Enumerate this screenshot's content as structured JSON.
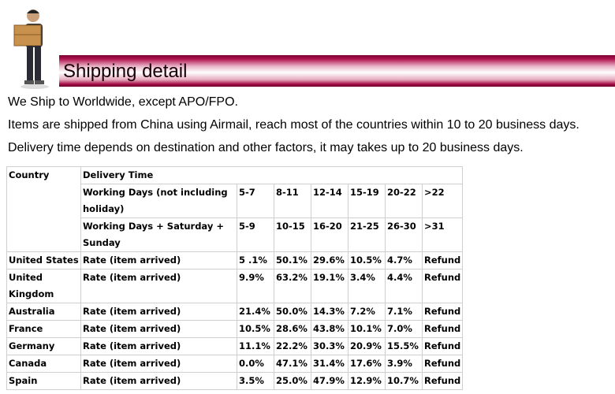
{
  "header": {
    "title": "Shipping detail"
  },
  "paragraphs": [
    "We Ship to Worldwide, except APO/FPO.",
    "Items are shipped from China using Airmail, reach most of the countries within 10 to 20 business days.",
    "Delivery time depends on destination and other factors, it may takes up to 20 business days."
  ],
  "table": {
    "country_header": "Country",
    "delivery_header": "Delivery Time",
    "day_rows": [
      {
        "label": "Working Days (not including holiday)",
        "values": [
          "5-7",
          "8-11",
          "12-14",
          "15-19",
          "20-22",
          ">22"
        ]
      },
      {
        "label": "Working Days + Saturday + Sunday",
        "values": [
          "5-9",
          "10-15",
          "16-20",
          "21-25",
          "26-30",
          ">31"
        ]
      }
    ],
    "rows": [
      {
        "country": "United States",
        "rate": "Rate (item arrived)",
        "values": [
          "5 .1%",
          "50.1%",
          "29.6%",
          "10.5%",
          "4.7%",
          "Refund"
        ]
      },
      {
        "country": "United Kingdom",
        "rate": "Rate (item arrived)",
        "values": [
          "9.9%",
          "63.2%",
          "19.1%",
          "3.4%",
          "4.4%",
          "Refund"
        ]
      },
      {
        "country": "Australia",
        "rate": "Rate (item arrived)",
        "values": [
          "21.4%",
          "50.0%",
          "14.3%",
          "7.2%",
          "7.1%",
          "Refund"
        ]
      },
      {
        "country": "France",
        "rate": "Rate (item arrived)",
        "values": [
          "10.5%",
          "28.6%",
          "43.8%",
          "10.1%",
          "7.0%",
          "Refund"
        ]
      },
      {
        "country": "Germany",
        "rate": "Rate (item arrived)",
        "values": [
          "11.1%",
          "22.2%",
          "30.3%",
          "20.9%",
          "15.5%",
          "Refund"
        ]
      },
      {
        "country": "Canada",
        "rate": "Rate (item arrived)",
        "values": [
          "0.0%",
          "47.1%",
          "31.4%",
          "17.6%",
          "3.9%",
          "Refund"
        ]
      },
      {
        "country": "Spain",
        "rate": "Rate (item arrived)",
        "values": [
          "3.5%",
          "25.0%",
          "47.9%",
          "12.9%",
          "10.7%",
          "Refund"
        ]
      }
    ]
  }
}
